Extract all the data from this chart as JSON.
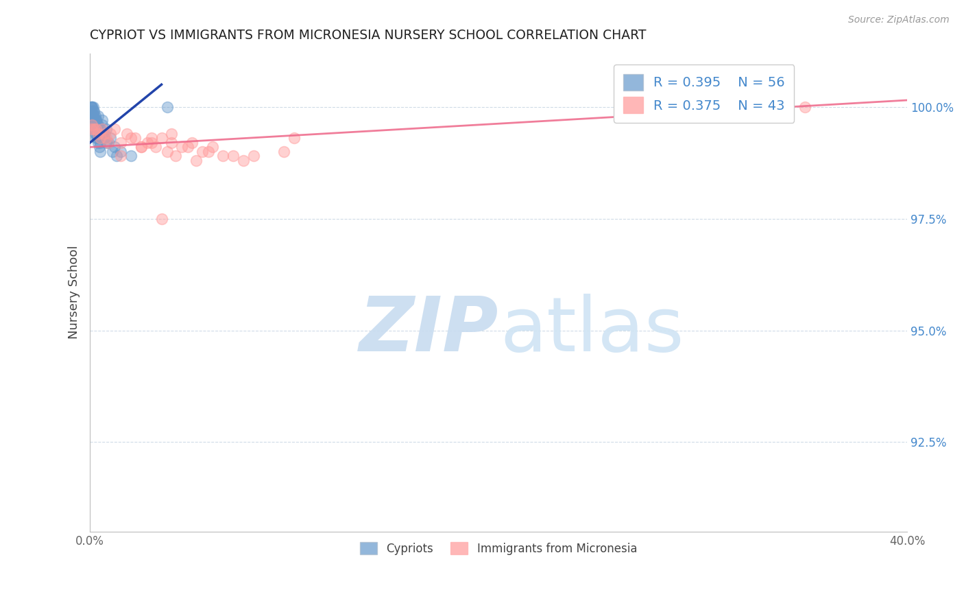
{
  "title": "CYPRIOT VS IMMIGRANTS FROM MICRONESIA NURSERY SCHOOL CORRELATION CHART",
  "source": "Source: ZipAtlas.com",
  "ylabel": "Nursery School",
  "xmin": 0.0,
  "xmax": 40.0,
  "ymin": 90.5,
  "ymax": 101.2,
  "yticks": [
    92.5,
    95.0,
    97.5,
    100.0
  ],
  "ytick_labels": [
    "92.5%",
    "95.0%",
    "97.5%",
    "100.0%"
  ],
  "legend_r1": "R = 0.395",
  "legend_n1": "N = 56",
  "legend_r2": "R = 0.375",
  "legend_n2": "N = 43",
  "color_blue": "#6699CC",
  "color_pink": "#FF9999",
  "color_blue_line": "#2244AA",
  "color_pink_line": "#EE6688",
  "color_text_blue": "#4488CC",
  "cypriot_x": [
    0.05,
    0.1,
    0.15,
    0.2,
    0.25,
    0.3,
    0.35,
    0.4,
    0.45,
    0.5,
    0.05,
    0.1,
    0.15,
    0.2,
    0.25,
    0.3,
    0.35,
    0.4,
    0.45,
    0.5,
    0.05,
    0.1,
    0.15,
    0.2,
    0.25,
    0.3,
    0.35,
    0.4,
    0.45,
    0.5,
    0.05,
    0.1,
    0.15,
    0.2,
    0.25,
    0.3,
    0.6,
    0.8,
    1.0,
    1.2,
    0.4,
    0.6,
    0.7,
    0.9,
    1.5,
    2.0,
    0.5,
    0.7,
    1.1,
    0.3,
    0.6,
    0.4,
    0.8,
    1.3,
    0.15,
    3.8
  ],
  "cypriot_y": [
    100.0,
    100.0,
    100.0,
    99.9,
    99.8,
    99.7,
    99.6,
    99.5,
    99.4,
    99.3,
    100.0,
    100.0,
    99.9,
    99.8,
    99.7,
    99.6,
    99.5,
    99.4,
    99.3,
    99.2,
    99.9,
    99.8,
    99.7,
    99.6,
    99.5,
    99.4,
    99.3,
    99.2,
    99.1,
    99.0,
    99.8,
    99.7,
    99.6,
    99.5,
    99.4,
    99.3,
    99.7,
    99.5,
    99.3,
    99.1,
    99.8,
    99.6,
    99.4,
    99.2,
    99.0,
    98.9,
    99.5,
    99.3,
    99.0,
    99.7,
    99.4,
    99.6,
    99.2,
    98.9,
    99.8,
    100.0
  ],
  "micronesia_x": [
    0.05,
    0.1,
    0.2,
    0.4,
    0.6,
    0.8,
    1.0,
    1.5,
    2.0,
    2.5,
    3.0,
    3.5,
    4.0,
    4.5,
    5.0,
    5.5,
    6.0,
    7.0,
    8.0,
    9.5,
    10.0,
    1.2,
    1.8,
    2.2,
    2.8,
    3.2,
    3.8,
    4.2,
    4.8,
    5.2,
    5.8,
    6.5,
    7.5,
    0.3,
    0.5,
    0.7,
    0.9,
    1.5,
    2.5,
    3.0,
    4.0,
    3.5,
    35.0
  ],
  "micronesia_y": [
    99.5,
    99.6,
    99.5,
    99.4,
    99.5,
    99.3,
    99.4,
    99.2,
    99.3,
    99.1,
    99.2,
    99.3,
    99.4,
    99.1,
    99.2,
    99.0,
    99.1,
    98.9,
    98.9,
    99.0,
    99.3,
    99.5,
    99.4,
    99.3,
    99.2,
    99.1,
    99.0,
    98.9,
    99.1,
    98.8,
    99.0,
    98.9,
    98.8,
    99.5,
    99.3,
    99.4,
    99.2,
    98.9,
    99.1,
    99.3,
    99.2,
    97.5,
    100.0
  ],
  "blue_line_x0": 0.0,
  "blue_line_y0": 99.2,
  "blue_line_x1": 3.5,
  "blue_line_y1": 100.5,
  "pink_line_x0": 0.0,
  "pink_line_y0": 99.1,
  "pink_line_x1": 40.0,
  "pink_line_y1": 100.15
}
